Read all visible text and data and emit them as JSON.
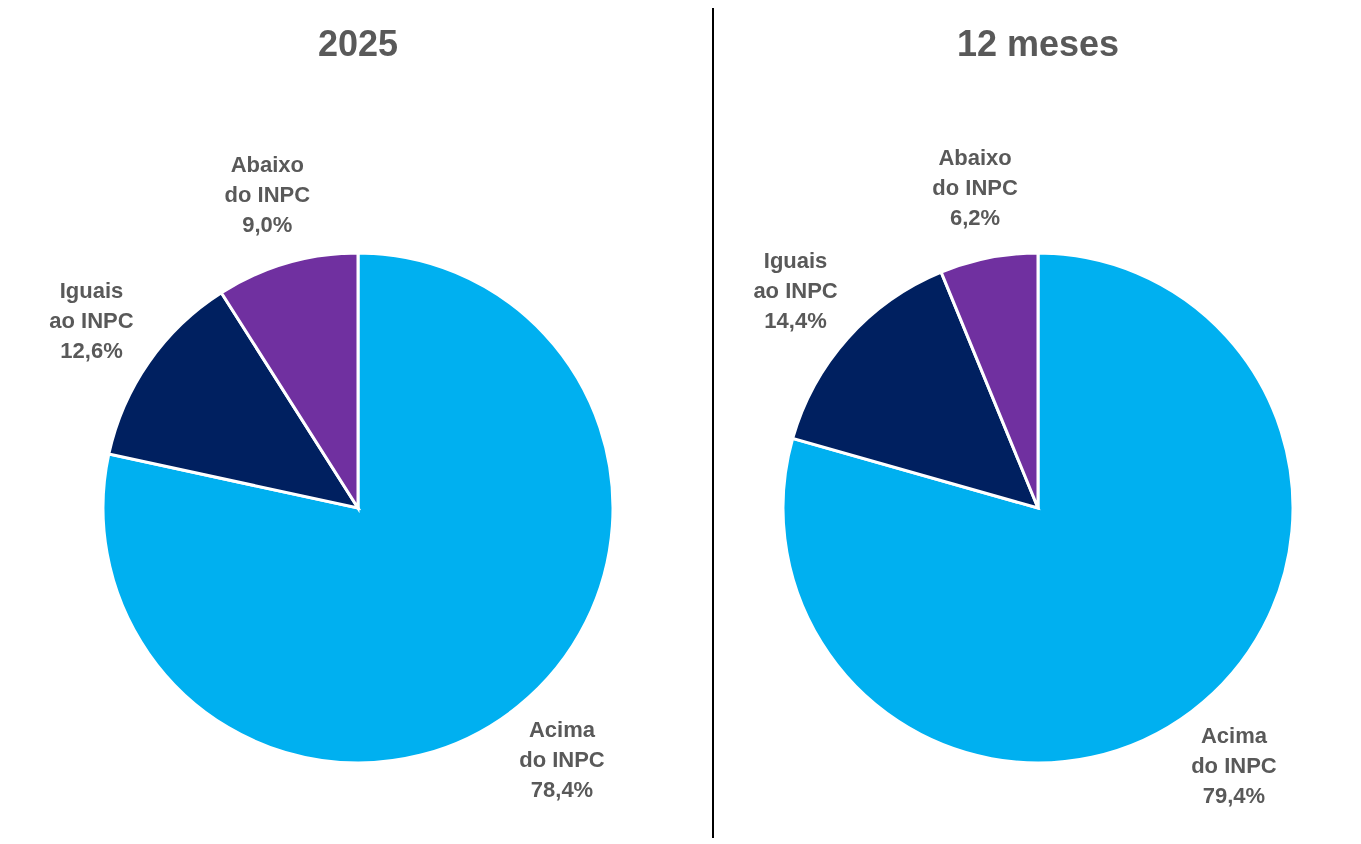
{
  "chart_data": [
    {
      "type": "pie",
      "title": "2025",
      "categories": [
        "Acima do INPC",
        "Iguais ao INPC",
        "Abaixo do INPC"
      ],
      "values": [
        78.4,
        12.6,
        9.0
      ],
      "colors": [
        "#00b0f0",
        "#002060",
        "#7030a0"
      ],
      "value_labels": [
        "78,4%",
        "12,6%",
        "9,0%"
      ]
    },
    {
      "type": "pie",
      "title": "12 meses",
      "categories": [
        "Acima do INPC",
        "Iguais ao INPC",
        "Abaixo do INPC"
      ],
      "values": [
        79.4,
        14.4,
        6.2
      ],
      "colors": [
        "#00b0f0",
        "#002060",
        "#7030a0"
      ],
      "value_labels": [
        "79,4%",
        "14,4%",
        "6,2%"
      ]
    }
  ]
}
